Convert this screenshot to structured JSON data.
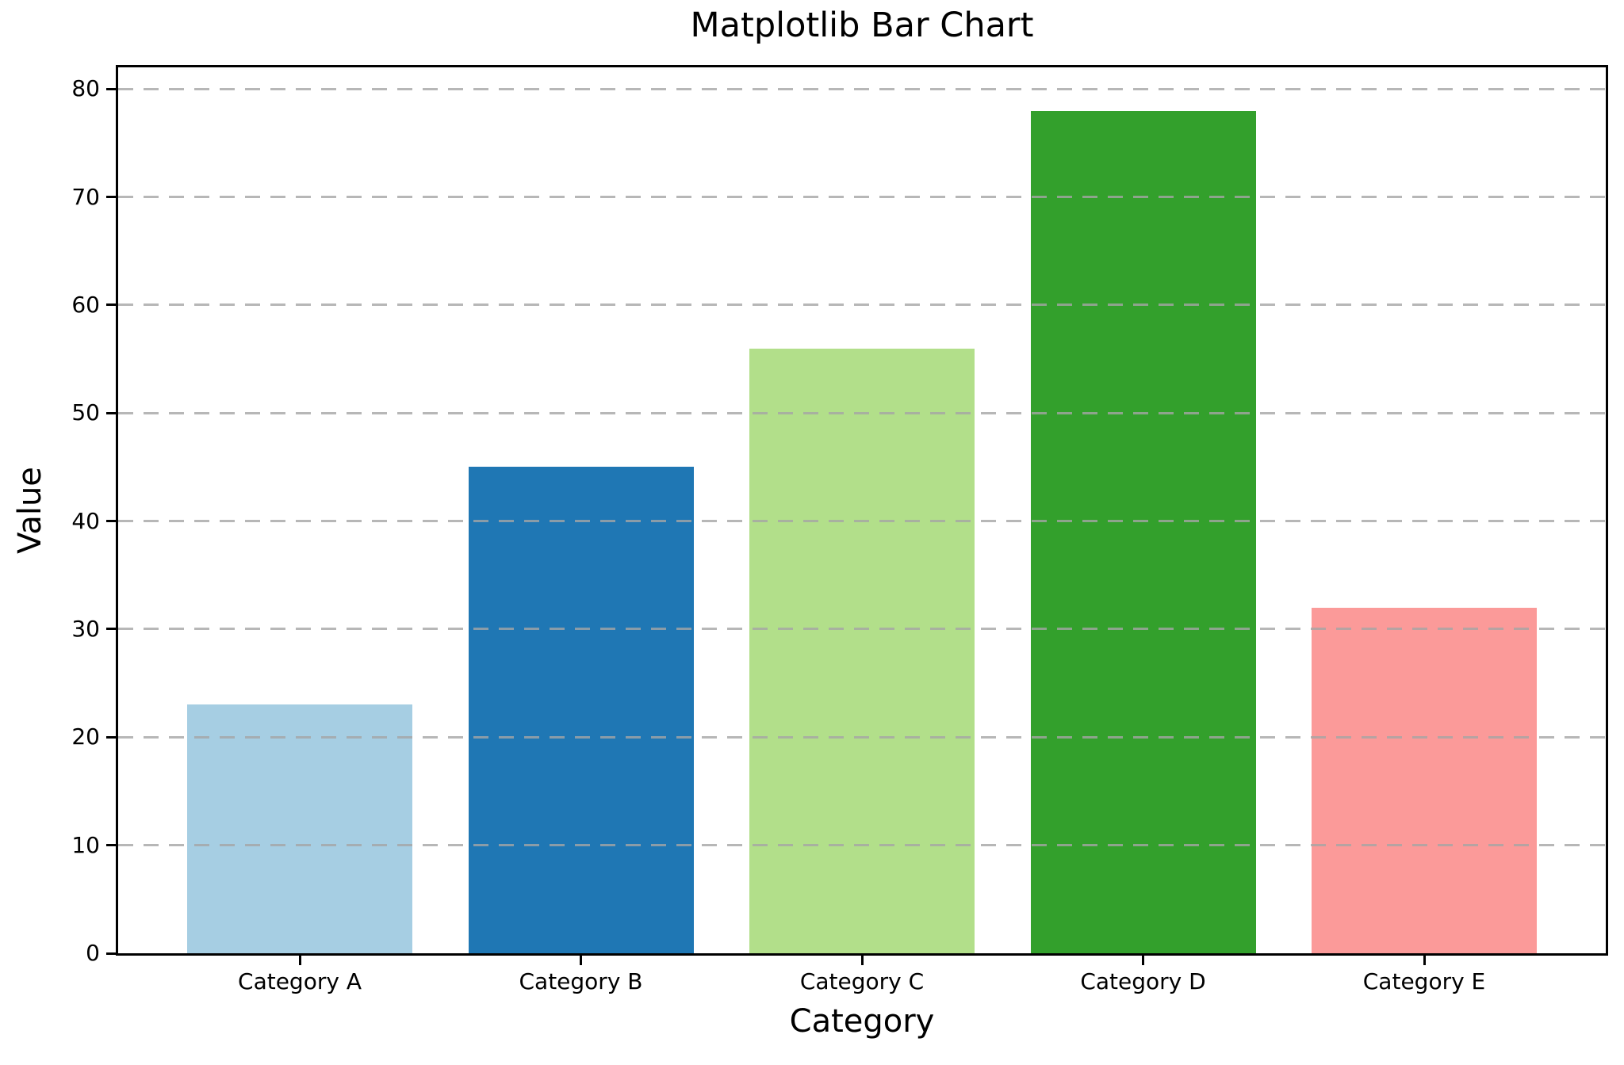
{
  "figure": {
    "background": "#ffffff"
  },
  "chart_data": {
    "type": "bar",
    "title": "Matplotlib Bar Chart",
    "xlabel": "Category",
    "ylabel": "Value",
    "categories": [
      "Category A",
      "Category B",
      "Category C",
      "Category D",
      "Category E"
    ],
    "values": [
      23,
      45,
      56,
      78,
      32
    ],
    "bar_colors": [
      "#a6cee3",
      "#1f77b4",
      "#b2df8a",
      "#33a02c",
      "#fb9a99"
    ],
    "yticks": [
      0,
      10,
      20,
      30,
      40,
      50,
      60,
      70,
      80
    ],
    "ylim": [
      0,
      82
    ],
    "grid": true,
    "grid_linestyle": "dashed",
    "grid_color": "#a5a5a5",
    "axis_color": "#000000",
    "text_color": "#000000",
    "legend": "none"
  }
}
